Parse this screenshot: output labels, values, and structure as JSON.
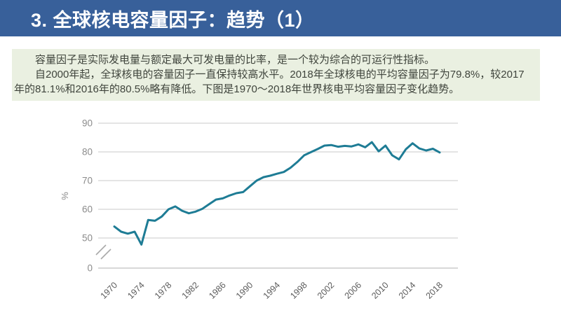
{
  "header": {
    "title": "3. 全球核电容量因子：趋势（1）",
    "bg_color": "#38609a",
    "text_color": "#ffffff"
  },
  "info_box": {
    "bg_color": "#eaf0e1",
    "text_color": "#3f443c",
    "paragraphs": [
      "容量因子是实际发电量与额定最大可发电量的比率，是一个较为综合的可运行性指标。",
      "自2000年起，全球核电的容量因子一直保持较高水平。2018年全球核电的平均容量因子为79.8%，较2017年的81.1%和2016年的80.5%略有降低。下图是1970～2018年世界核电平均容量因子变化趋势。"
    ]
  },
  "chart_data": {
    "type": "line",
    "title": "",
    "xlabel": "",
    "ylabel": "%",
    "x": [
      1970,
      1971,
      1972,
      1973,
      1974,
      1975,
      1976,
      1977,
      1978,
      1979,
      1980,
      1981,
      1982,
      1983,
      1984,
      1985,
      1986,
      1987,
      1988,
      1989,
      1990,
      1991,
      1992,
      1993,
      1994,
      1995,
      1996,
      1997,
      1998,
      1999,
      2000,
      2001,
      2002,
      2003,
      2004,
      2005,
      2006,
      2007,
      2008,
      2009,
      2010,
      2011,
      2012,
      2013,
      2014,
      2015,
      2016,
      2017,
      2018
    ],
    "values": [
      54.0,
      52.2,
      51.5,
      52.2,
      47.7,
      56.3,
      56.0,
      57.5,
      60.0,
      61.0,
      59.5,
      58.6,
      59.2,
      60.2,
      61.8,
      63.4,
      63.8,
      64.8,
      65.6,
      66.0,
      68.0,
      70.0,
      71.2,
      71.7,
      72.4,
      73.0,
      74.5,
      76.5,
      78.8,
      79.9,
      81.0,
      82.2,
      82.4,
      81.8,
      82.1,
      81.9,
      82.6,
      81.6,
      83.4,
      80.2,
      82.2,
      78.8,
      77.4,
      80.9,
      83.0,
      81.2,
      80.5,
      81.1,
      79.8
    ],
    "y_ticks": [
      0,
      50,
      60,
      70,
      80,
      90
    ],
    "x_tick_labels": [
      "1970",
      "1974",
      "1978",
      "1982",
      "1986",
      "1990",
      "1994",
      "1998",
      "2002",
      "2006",
      "2010",
      "2014",
      "2018"
    ],
    "axis_break": true,
    "grid": true,
    "legend": "none",
    "line_color": "#1e7c95",
    "grid_color": "#c9c9c9",
    "baseline_color": "#b0b0b0",
    "ytick_color": "#8c8c8c",
    "xtick_color": "#5c5c5c"
  }
}
